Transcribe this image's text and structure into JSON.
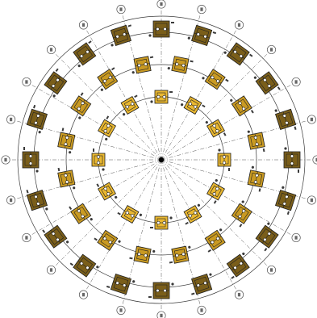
{
  "diagram": {
    "title": "",
    "colors": {
      "background": "#ffffff",
      "ring_line": "#3a3a3a",
      "grid_line": "#555555",
      "pad_fill_light": "#e8b62a",
      "pad_fill_dark": "#6b5418",
      "pad_outline": "#1e1e1e"
    },
    "radial_axes": 24,
    "grid_rings": 4,
    "pad_rings": [
      {
        "name": "inner",
        "count": 12,
        "fill": "#e9b730"
      },
      {
        "name": "middle",
        "count": 16,
        "fill": "#c99a22"
      },
      {
        "name": "outer",
        "count": 20,
        "fill": "#7a5e1a"
      }
    ],
    "axis_bubble_count": 24,
    "axis_bubble_labels": []
  }
}
